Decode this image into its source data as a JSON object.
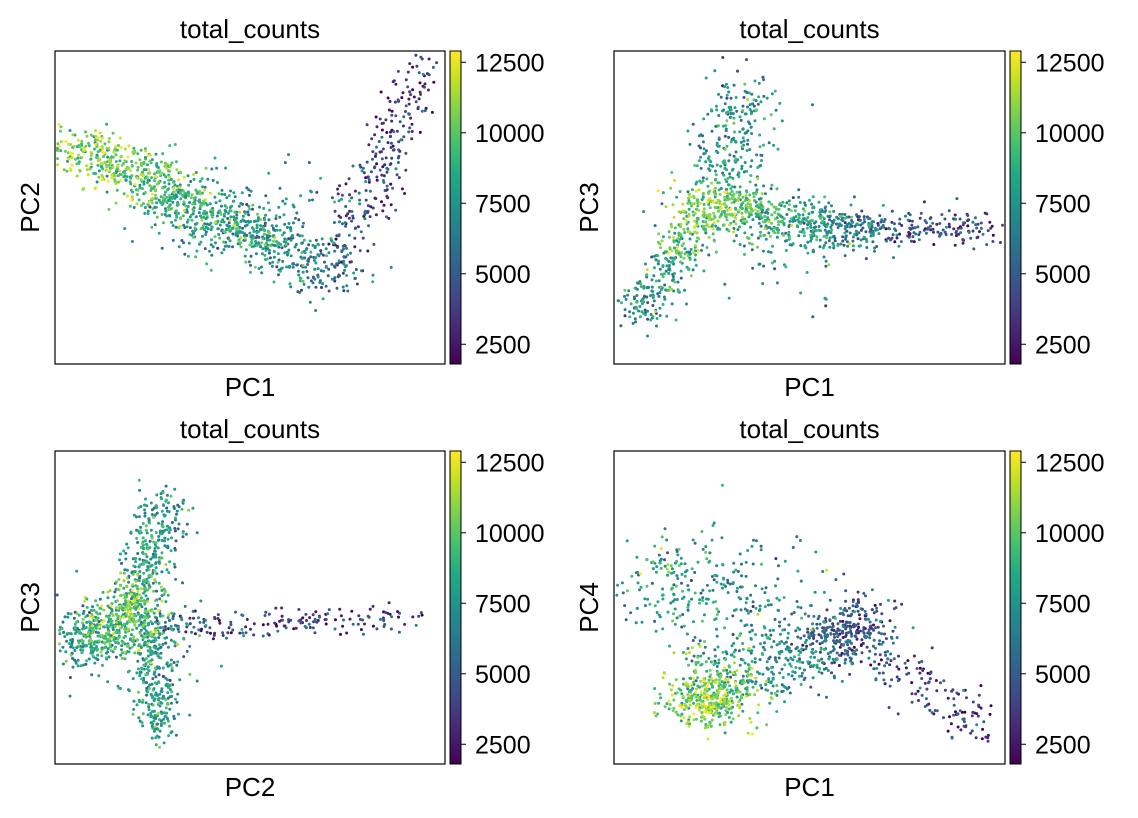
{
  "figure": {
    "colormap": "viridis",
    "colormap_stops": [
      "#440154",
      "#482475",
      "#414487",
      "#355f8d",
      "#2a788e",
      "#21918c",
      "#22a884",
      "#44bf70",
      "#7ad151",
      "#bddf26",
      "#fde725"
    ]
  },
  "chart_data": [
    {
      "type": "scatter",
      "title": "total_counts",
      "xlabel": "PC1",
      "ylabel": "PC2",
      "color_variable": "total_counts",
      "colorbar": {
        "range": [
          1800,
          12900
        ],
        "ticks": [
          2500,
          5000,
          7500,
          10000,
          12500
        ]
      },
      "xlim": [
        0,
        100
      ],
      "ylim": [
        0,
        100
      ],
      "axis_ticks": false,
      "structure": [
        {
          "from": [
            4,
            70
          ],
          "to": [
            72,
            28
          ],
          "spread": 4.5,
          "weight": 0.72,
          "c_from": 11000,
          "c_to": 6000
        },
        {
          "from": [
            72,
            30
          ],
          "to": [
            95,
            97
          ],
          "spread": 3.2,
          "weight": 0.18,
          "c_from": 4500,
          "c_to": 3200
        },
        {
          "from": [
            28,
            44
          ],
          "to": [
            70,
            50
          ],
          "spread": 7.0,
          "weight": 0.1,
          "c_from": 7500,
          "c_to": 6500
        }
      ]
    },
    {
      "type": "scatter",
      "title": "total_counts",
      "xlabel": "PC1",
      "ylabel": "PC3",
      "color_variable": "total_counts",
      "colorbar": {
        "range": [
          1800,
          12900
        ],
        "ticks": [
          2500,
          5000,
          7500,
          10000,
          12500
        ]
      },
      "xlim": [
        0,
        100
      ],
      "ylim": [
        0,
        100
      ],
      "axis_ticks": false,
      "structure": [
        {
          "from": [
            6,
            16
          ],
          "to": [
            24,
            50
          ],
          "spread": 3.5,
          "weight": 0.22,
          "c_from": 6500,
          "c_to": 10500
        },
        {
          "from": [
            20,
            52
          ],
          "to": [
            62,
            42
          ],
          "spread": 4.0,
          "weight": 0.38,
          "c_from": 11000,
          "c_to": 6500
        },
        {
          "from": [
            60,
            44
          ],
          "to": [
            95,
            43
          ],
          "spread": 2.5,
          "weight": 0.14,
          "c_from": 5000,
          "c_to": 3800
        },
        {
          "from": [
            28,
            56
          ],
          "to": [
            34,
            88
          ],
          "spread": 5.0,
          "weight": 0.18,
          "c_from": 8000,
          "c_to": 7000
        },
        {
          "from": [
            20,
            40
          ],
          "to": [
            60,
            38
          ],
          "spread": 9.0,
          "weight": 0.08,
          "c_from": 8000,
          "c_to": 7000
        }
      ]
    },
    {
      "type": "scatter",
      "title": "total_counts",
      "xlabel": "PC2",
      "ylabel": "PC3",
      "color_variable": "total_counts",
      "colorbar": {
        "range": [
          1800,
          12900
        ],
        "ticks": [
          2500,
          5000,
          7500,
          10000,
          12500
        ]
      },
      "xlim": [
        0,
        100
      ],
      "ylim": [
        0,
        100
      ],
      "axis_ticks": false,
      "structure": [
        {
          "from": [
            5,
            38
          ],
          "to": [
            20,
            48
          ],
          "spread": 4.5,
          "weight": 0.3,
          "c_from": 7000,
          "c_to": 11000
        },
        {
          "from": [
            20,
            48
          ],
          "to": [
            28,
            85
          ],
          "spread": 3.5,
          "weight": 0.26,
          "c_from": 9000,
          "c_to": 7000
        },
        {
          "from": [
            24,
            48
          ],
          "to": [
            27,
            10
          ],
          "spread": 3.0,
          "weight": 0.22,
          "c_from": 8000,
          "c_to": 7500
        },
        {
          "from": [
            28,
            43
          ],
          "to": [
            95,
            47
          ],
          "spread": 2.3,
          "weight": 0.12,
          "c_from": 4000,
          "c_to": 3500
        },
        {
          "from": [
            12,
            40
          ],
          "to": [
            30,
            44
          ],
          "spread": 8.0,
          "weight": 0.1,
          "c_from": 8000,
          "c_to": 7000
        }
      ]
    },
    {
      "type": "scatter",
      "title": "total_counts",
      "xlabel": "PC1",
      "ylabel": "PC4",
      "color_variable": "total_counts",
      "colorbar": {
        "range": [
          1800,
          12900
        ],
        "ticks": [
          2500,
          5000,
          7500,
          10000,
          12500
        ]
      },
      "xlim": [
        0,
        100
      ],
      "ylim": [
        0,
        100
      ],
      "axis_ticks": false,
      "structure": [
        {
          "from": [
            22,
            20
          ],
          "to": [
            26,
            22
          ],
          "spread": 5.0,
          "weight": 0.26,
          "c_from": 11000,
          "c_to": 9500
        },
        {
          "from": [
            26,
            26
          ],
          "to": [
            65,
            42
          ],
          "spread": 6.0,
          "weight": 0.26,
          "c_from": 9000,
          "c_to": 5000
        },
        {
          "from": [
            55,
            38
          ],
          "to": [
            64,
            46
          ],
          "spread": 4.0,
          "weight": 0.14,
          "c_from": 4500,
          "c_to": 4000
        },
        {
          "from": [
            64,
            38
          ],
          "to": [
            95,
            12
          ],
          "spread": 4.0,
          "weight": 0.1,
          "c_from": 4500,
          "c_to": 3200
        },
        {
          "from": [
            8,
            55
          ],
          "to": [
            20,
            62
          ],
          "spread": 6.5,
          "weight": 0.1,
          "c_from": 8500,
          "c_to": 7500
        },
        {
          "from": [
            25,
            40
          ],
          "to": [
            40,
            60
          ],
          "spread": 10.0,
          "weight": 0.14,
          "c_from": 8000,
          "c_to": 6500
        }
      ]
    }
  ]
}
